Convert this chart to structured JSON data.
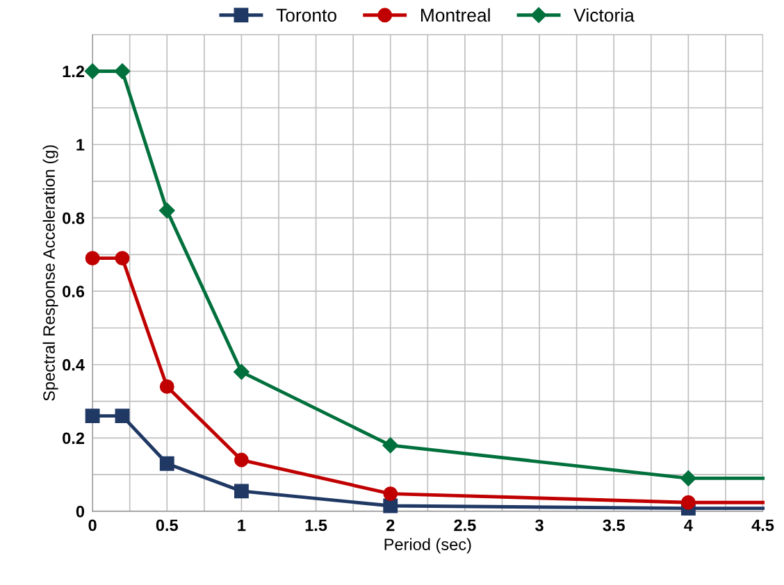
{
  "chart_data": {
    "type": "line",
    "xlabel": "Period (sec)",
    "ylabel": "Spectral Response Acceleration (g)",
    "x": [
      0,
      0.2,
      0.5,
      1,
      2,
      4,
      4.5
    ],
    "series": [
      {
        "name": "Toronto",
        "color": "#1f3864",
        "marker": "square",
        "values": [
          0.26,
          0.26,
          0.13,
          0.055,
          0.015,
          0.008,
          0.008
        ]
      },
      {
        "name": "Montreal",
        "color": "#c00000",
        "marker": "circle",
        "values": [
          0.69,
          0.69,
          0.34,
          0.14,
          0.048,
          0.024,
          0.024
        ]
      },
      {
        "name": "Victoria",
        "color": "#00703c",
        "marker": "diamond",
        "values": [
          1.2,
          1.2,
          0.82,
          0.38,
          0.18,
          0.09,
          0.09
        ]
      }
    ],
    "xlim": [
      0,
      4.5
    ],
    "ylim": [
      0,
      1.3
    ],
    "xticks": [
      0,
      {
        "value": 0.25,
        "label": null
      },
      0.5,
      {
        "value": 0.75,
        "label": null
      },
      1,
      {
        "value": 1.25,
        "label": null
      },
      1.5,
      {
        "value": 1.75,
        "label": null
      },
      2,
      {
        "value": 2.25,
        "label": null
      },
      2.5,
      {
        "value": 2.75,
        "label": null
      },
      3,
      {
        "value": 3.25,
        "label": null
      },
      3.5,
      {
        "value": 3.75,
        "label": null
      },
      4,
      {
        "value": 4.25,
        "label": null
      },
      4.5
    ],
    "yticks": [
      0,
      {
        "value": 0.1,
        "label": null
      },
      0.2,
      {
        "value": 0.3,
        "label": null
      },
      0.4,
      {
        "value": 0.5,
        "label": null
      },
      0.6,
      {
        "value": 0.7,
        "label": null
      },
      0.8,
      {
        "value": 0.9,
        "label": null
      },
      1,
      {
        "value": 1.1,
        "label": null
      },
      1.2,
      {
        "value": 1.3,
        "label": null
      }
    ],
    "grid": true,
    "legend": "top",
    "line_style": "solid"
  }
}
